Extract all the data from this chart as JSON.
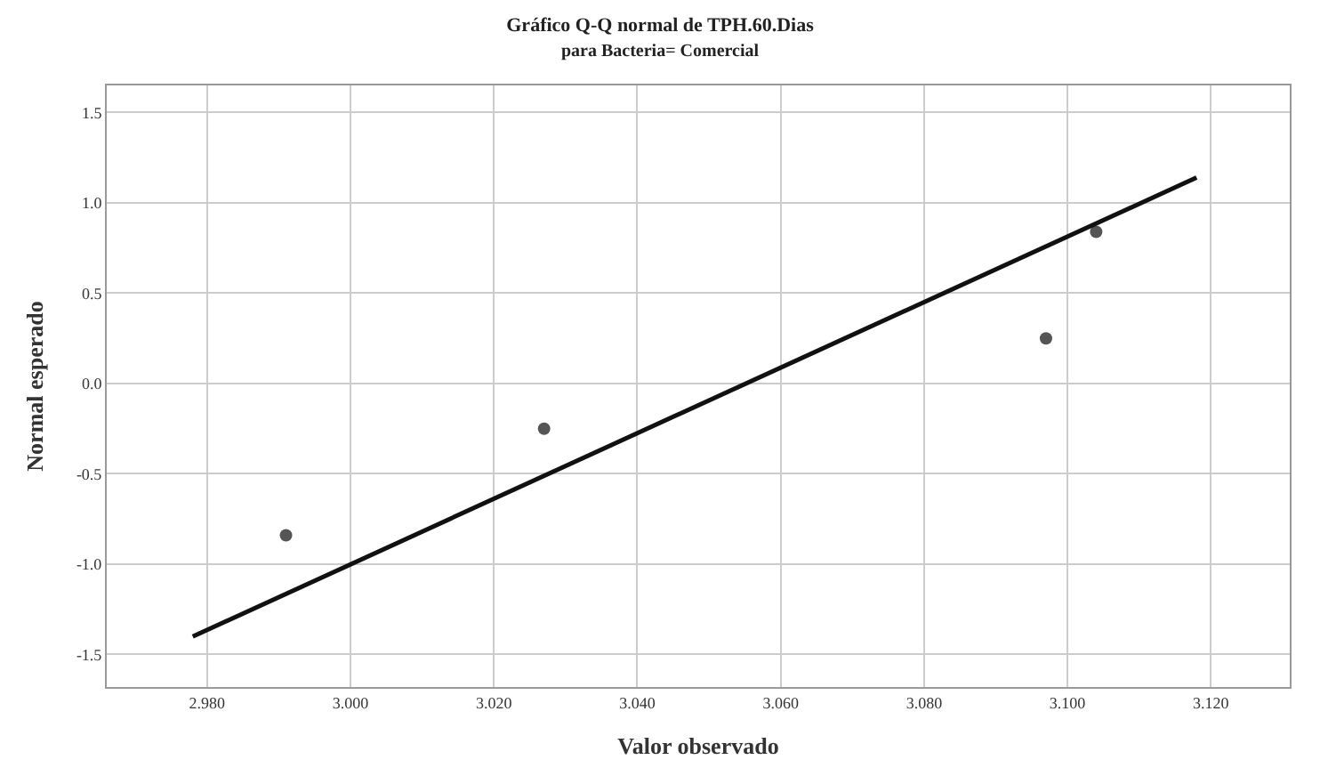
{
  "chart_data": {
    "type": "scatter",
    "title": "Gráfico Q-Q normal de TPH.60.Dias",
    "subtitle": "para Bacteria= Comercial",
    "xlabel": "Valor observado",
    "ylabel": "Normal esperado",
    "x": [
      2.991,
      3.027,
      3.097,
      3.104
    ],
    "series": [
      {
        "color": "#555555",
        "values": [
          -0.84,
          -0.25,
          0.25,
          0.84
        ],
        "marker": "circle"
      },
      {
        "type": "line",
        "color": "#111111",
        "x": [
          2.978,
          3.118
        ],
        "values": [
          -1.4,
          1.14
        ],
        "line_style": "solid"
      }
    ],
    "xlim": [
      2.966,
      3.131
    ],
    "ylim": [
      -1.68,
      1.65
    ],
    "xticks": [
      {
        "value": 2.98,
        "label": "2.980"
      },
      {
        "value": 3.0,
        "label": "3.000"
      },
      {
        "value": 3.02,
        "label": "3.020"
      },
      {
        "value": 3.04,
        "label": "3.040"
      },
      {
        "value": 3.06,
        "label": "3.060"
      },
      {
        "value": 3.08,
        "label": "3.080"
      },
      {
        "value": 3.1,
        "label": "3.100"
      },
      {
        "value": 3.12,
        "label": "3.120"
      }
    ],
    "yticks": [
      {
        "value": -1.5,
        "label": "-1.5"
      },
      {
        "value": -1.0,
        "label": "-1.0"
      },
      {
        "value": -0.5,
        "label": "-0.5"
      },
      {
        "value": 0.0,
        "label": "0.0"
      },
      {
        "value": 0.5,
        "label": "0.5"
      },
      {
        "value": 1.0,
        "label": "1.0"
      },
      {
        "value": 1.5,
        "label": "1.5"
      }
    ],
    "grid": true
  }
}
